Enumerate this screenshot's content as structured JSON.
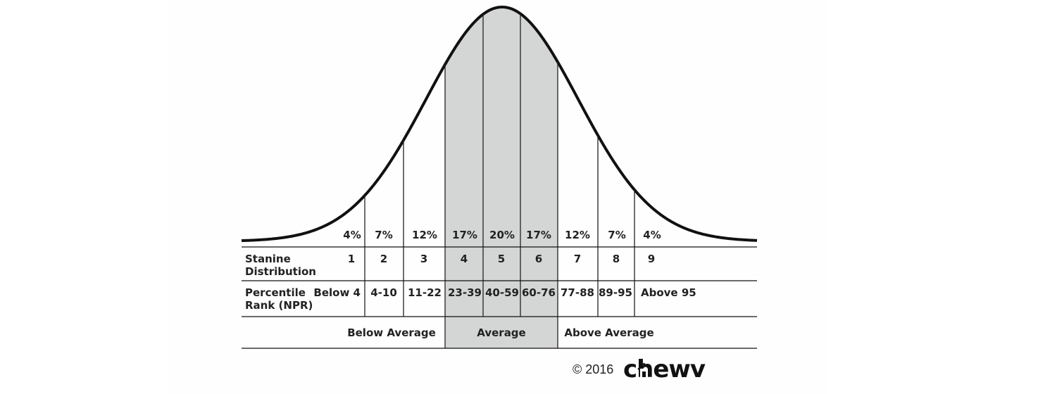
{
  "stanine": {
    "title_line1": "Stanine",
    "title_line2": "Distribution",
    "values": [
      "1",
      "2",
      "3",
      "4",
      "5",
      "6",
      "7",
      "8",
      "9"
    ]
  },
  "percentages": [
    "4%",
    "7%",
    "12%",
    "17%",
    "20%",
    "17%",
    "12%",
    "7%",
    "4%"
  ],
  "percentile": {
    "title_line1": "Percentile",
    "title_line2": "Rank (NPR)",
    "values": [
      "Below 4",
      "4-10",
      "11-22",
      "23-39",
      "40-59",
      "60-76",
      "77-88",
      "89-95",
      "Above 95"
    ]
  },
  "bands": {
    "below": "Below Average",
    "average": "Average",
    "above": "Above Average"
  },
  "footer": {
    "copyright": "© 2016",
    "brand": "chewv"
  },
  "colors": {
    "shade": "#d3d6d5",
    "line": "#111111"
  }
}
